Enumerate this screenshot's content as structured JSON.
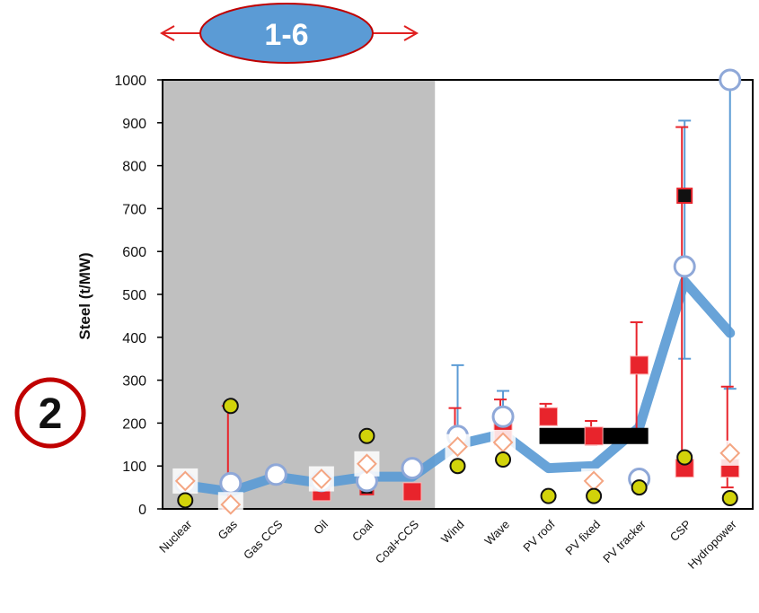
{
  "top_badge": {
    "label": "1-6",
    "fill": "#5b9bd5",
    "stroke": "#c00000",
    "arrow_color": "#e02020"
  },
  "side_badge": {
    "label": "2",
    "stroke": "#c00000"
  },
  "chart_data": {
    "type": "scatter",
    "ylabel": "Steel (t/MW)",
    "ylim": [
      0,
      1000
    ],
    "yticks": [
      0,
      100,
      200,
      300,
      400,
      500,
      600,
      700,
      800,
      900,
      1000
    ],
    "grid": false,
    "shaded_region": {
      "from_category": "Nuclear",
      "to_category": "Coal+CCS",
      "color": "#c0c0c0"
    },
    "categories": [
      "Nuclear",
      "Gas",
      "Gas CCS",
      "Oil",
      "Coal",
      "Coal+CCS",
      "Wind",
      "Wave",
      "PV roof",
      "PV fixed",
      "PV tracker",
      "CSP",
      "Hydropower"
    ],
    "series": [
      {
        "values": [
          55,
          40,
          75,
          60,
          75,
          75,
          150,
          175,
          95,
          100,
          190,
          530,
          410
        ],
        "style": "thick line",
        "color": "#5b9bd5"
      },
      {
        "values": [
          60,
          60,
          80,
          65,
          65,
          95,
          170,
          215,
          null,
          null,
          70,
          565,
          1000
        ],
        "style": "open circle",
        "color": "#8fa8d8",
        "error_bars": {
          "color": "#5b9bd5",
          "ranges": [
            null,
            null,
            null,
            null,
            null,
            null,
            [
              110,
              335
            ],
            [
              150,
              275
            ],
            null,
            null,
            null,
            [
              350,
              905
            ],
            [
              280,
              1000
            ]
          ]
        }
      },
      {
        "values": [
          65,
          10,
          null,
          70,
          105,
          null,
          145,
          155,
          null,
          65,
          null,
          null,
          130
        ],
        "style": "open diamond",
        "color": "#f4a582"
      },
      {
        "values": [
          null,
          null,
          null,
          40,
          null,
          40,
          null,
          180,
          215,
          170,
          335,
          95,
          95
        ],
        "style": "filled square",
        "color": "#e8242c",
        "error_bars": {
          "color": "#e8242c",
          "ranges": [
            null,
            [
              0,
              240
            ],
            null,
            null,
            null,
            null,
            [
              160,
              235
            ],
            [
              150,
              255
            ],
            [
              210,
              245
            ],
            [
              150,
              205
            ],
            [
              170,
              435
            ],
            [
              110,
              890
            ],
            [
              50,
              285
            ]
          ]
        }
      },
      {
        "values": [
          null,
          null,
          null,
          null,
          40,
          null,
          null,
          null,
          null,
          null,
          null,
          730,
          null
        ],
        "style": "black square",
        "color": "#111111"
      },
      {
        "values": [
          20,
          240,
          null,
          null,
          170,
          null,
          100,
          115,
          30,
          30,
          50,
          120,
          25
        ],
        "style": "filled circle",
        "color": "#d2d30a"
      }
    ],
    "annotation": {
      "type": "horizontal bar",
      "from_category": "PV roof",
      "to_category": "PV tracker",
      "value": 170,
      "color": "#000000"
    }
  }
}
